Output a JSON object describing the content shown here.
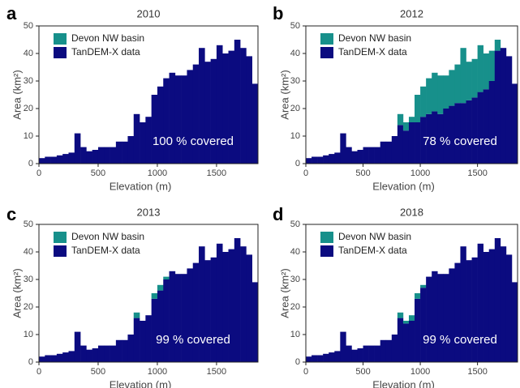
{
  "chart_data": [
    {
      "type": "histogram",
      "label": "a",
      "title": "2010",
      "xlabel": "Elevation (m)",
      "ylabel": "Area (km²)",
      "annotation": "100 % covered",
      "bins": [
        0,
        50,
        100,
        150,
        200,
        250,
        300,
        350,
        400,
        450,
        500,
        550,
        600,
        650,
        700,
        750,
        800,
        850,
        900,
        950,
        1000,
        1050,
        1100,
        1150,
        1200,
        1250,
        1300,
        1350,
        1400,
        1450,
        1500,
        1550,
        1600,
        1650,
        1700,
        1750,
        1800,
        1850
      ],
      "series": [
        {
          "name": "Devon NW basin",
          "color": "#17908b",
          "values": [
            0,
            0,
            0,
            0,
            0,
            0,
            0,
            0,
            0,
            0,
            0,
            0,
            0,
            0,
            0,
            0,
            0,
            0,
            0,
            0,
            0,
            0,
            0,
            0,
            0,
            0,
            0,
            0,
            0,
            0,
            0,
            0,
            0,
            0,
            0,
            0,
            0
          ]
        },
        {
          "name": "TanDEM-X data",
          "color": "#0b0b80",
          "values": [
            2,
            2.5,
            2.5,
            3,
            3.5,
            4,
            11,
            6,
            4.5,
            5,
            6,
            6,
            6,
            8,
            8,
            10,
            18,
            15,
            17,
            25,
            28,
            31,
            33,
            32,
            32,
            34,
            36,
            42,
            37,
            38,
            43,
            40,
            41,
            45,
            42,
            39,
            29
          ]
        }
      ],
      "xlim": [
        0,
        1850
      ],
      "xticks": [
        0,
        500,
        1000,
        1500
      ],
      "ylim": [
        0,
        50
      ],
      "yticks": [
        0,
        10,
        20,
        30,
        40,
        50
      ],
      "legend": "upper left"
    },
    {
      "type": "histogram",
      "label": "b",
      "title": "2012",
      "xlabel": "Elevation (m)",
      "ylabel": "Area (km²)",
      "annotation": "78 % covered",
      "bins": [
        0,
        50,
        100,
        150,
        200,
        250,
        300,
        350,
        400,
        450,
        500,
        550,
        600,
        650,
        700,
        750,
        800,
        850,
        900,
        950,
        1000,
        1050,
        1100,
        1150,
        1200,
        1250,
        1300,
        1350,
        1400,
        1450,
        1500,
        1550,
        1600,
        1650,
        1700,
        1750,
        1800,
        1850
      ],
      "series": [
        {
          "name": "Devon NW basin",
          "color": "#17908b",
          "values": [
            0,
            0,
            0,
            0,
            0,
            0,
            0,
            0,
            0,
            0,
            0,
            0,
            0,
            0,
            0,
            0,
            4,
            3,
            2,
            10,
            11,
            13,
            14,
            14,
            12,
            13,
            14,
            20,
            14,
            14,
            17,
            13,
            11,
            4,
            0,
            0,
            0
          ]
        },
        {
          "name": "TanDEM-X data",
          "color": "#0b0b80",
          "values": [
            2,
            2.5,
            2.5,
            3,
            3.5,
            4,
            11,
            6,
            4.5,
            5,
            6,
            6,
            6,
            8,
            8,
            10,
            14,
            12,
            15,
            15,
            17,
            18,
            19,
            18,
            20,
            21,
            22,
            22,
            23,
            24,
            26,
            27,
            30,
            41,
            42,
            39,
            29
          ]
        }
      ],
      "xlim": [
        0,
        1850
      ],
      "xticks": [
        0,
        500,
        1000,
        1500
      ],
      "ylim": [
        0,
        50
      ],
      "yticks": [
        0,
        10,
        20,
        30,
        40,
        50
      ],
      "legend": "upper left"
    },
    {
      "type": "histogram",
      "label": "c",
      "title": "2013",
      "xlabel": "Elevation (m)",
      "ylabel": "Area (km²)",
      "annotation": "99 % covered",
      "bins": [
        0,
        50,
        100,
        150,
        200,
        250,
        300,
        350,
        400,
        450,
        500,
        550,
        600,
        650,
        700,
        750,
        800,
        850,
        900,
        950,
        1000,
        1050,
        1100,
        1150,
        1200,
        1250,
        1300,
        1350,
        1400,
        1450,
        1500,
        1550,
        1600,
        1650,
        1700,
        1750,
        1800,
        1850
      ],
      "series": [
        {
          "name": "Devon NW basin",
          "color": "#17908b",
          "values": [
            0,
            0,
            0,
            0,
            0,
            0,
            0,
            0,
            0,
            0,
            0,
            0,
            0,
            0,
            0,
            0,
            2,
            0,
            0,
            2,
            2,
            1,
            0,
            0,
            0,
            0,
            0,
            0,
            0,
            0,
            0,
            0,
            0,
            0,
            0,
            0,
            0
          ]
        },
        {
          "name": "TanDEM-X data",
          "color": "#0b0b80",
          "values": [
            2,
            2.5,
            2.5,
            3,
            3.5,
            4,
            11,
            6,
            4.5,
            5,
            6,
            6,
            6,
            8,
            8,
            10,
            16,
            15,
            17,
            23,
            26,
            30,
            33,
            32,
            32,
            34,
            36,
            42,
            37,
            38,
            43,
            40,
            41,
            45,
            42,
            39,
            29
          ]
        }
      ],
      "xlim": [
        0,
        1850
      ],
      "xticks": [
        0,
        500,
        1000,
        1500
      ],
      "ylim": [
        0,
        50
      ],
      "yticks": [
        0,
        10,
        20,
        30,
        40,
        50
      ],
      "legend": "upper left"
    },
    {
      "type": "histogram",
      "label": "d",
      "title": "2018",
      "xlabel": "Elevation (m)",
      "ylabel": "Area (km²)",
      "annotation": "99 % covered",
      "bins": [
        0,
        50,
        100,
        150,
        200,
        250,
        300,
        350,
        400,
        450,
        500,
        550,
        600,
        650,
        700,
        750,
        800,
        850,
        900,
        950,
        1000,
        1050,
        1100,
        1150,
        1200,
        1250,
        1300,
        1350,
        1400,
        1450,
        1500,
        1550,
        1600,
        1650,
        1700,
        1750,
        1800,
        1850
      ],
      "series": [
        {
          "name": "Devon NW basin",
          "color": "#17908b",
          "values": [
            0,
            0,
            0,
            0,
            0,
            0,
            0,
            0,
            0,
            0,
            0,
            0,
            0,
            0,
            0,
            0,
            2,
            1,
            2,
            2,
            1,
            0,
            0,
            0,
            0,
            0,
            0,
            0,
            0,
            0,
            0,
            0,
            0,
            0,
            0,
            0,
            0
          ]
        },
        {
          "name": "TanDEM-X data",
          "color": "#0b0b80",
          "values": [
            2,
            2.5,
            2.5,
            3,
            3.5,
            4,
            11,
            6,
            4.5,
            5,
            6,
            6,
            6,
            8,
            8,
            10,
            16,
            14,
            15,
            23,
            27,
            31,
            33,
            32,
            32,
            34,
            36,
            42,
            37,
            38,
            43,
            40,
            41,
            45,
            42,
            39,
            29
          ]
        }
      ],
      "xlim": [
        0,
        1850
      ],
      "xticks": [
        0,
        500,
        1000,
        1500
      ],
      "ylim": [
        0,
        50
      ],
      "yticks": [
        0,
        10,
        20,
        30,
        40,
        50
      ],
      "legend": "upper left"
    }
  ]
}
